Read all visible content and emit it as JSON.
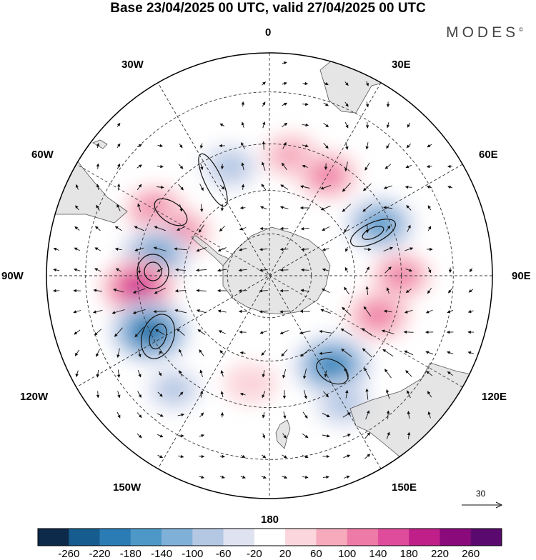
{
  "title": "Base 23/04/2025 00 UTC, valid 27/04/2025 00 UTC",
  "brand": "MODES",
  "brand_mark": "©",
  "projection": "south-polar-stereographic",
  "longitude_labels": {
    "n": "0",
    "ne30": "30E",
    "ne60": "60E",
    "e": "90E",
    "se120": "120E",
    "se150": "150E",
    "s": "180",
    "sw150": "150W",
    "sw120": "120W",
    "w": "90W",
    "nw60": "60W",
    "nw30": "30W"
  },
  "reference_vector": {
    "label": "30",
    "value": 30
  },
  "colorbar": {
    "ticks": [
      "-260",
      "-220",
      "-180",
      "-140",
      "-100",
      "-60",
      "-20",
      "20",
      "60",
      "100",
      "140",
      "180",
      "220",
      "260"
    ],
    "colors": [
      "#0d2a4a",
      "#165c8e",
      "#2b7cb5",
      "#4e98c8",
      "#7fb0d8",
      "#b4c8e4",
      "#dfe2f1",
      "#ffffff",
      "#fbd6dc",
      "#f6aabc",
      "#ee7aa8",
      "#e04c9c",
      "#c01f8a",
      "#8a0a7c",
      "#5a0a6e"
    ]
  },
  "anomaly_centers": [
    {
      "lon": -20,
      "lat": -50,
      "value": -90
    },
    {
      "lon": -60,
      "lat": -45,
      "value": 120
    },
    {
      "lon": -65,
      "lat": -55,
      "value": 140
    },
    {
      "lon": -80,
      "lat": -50,
      "value": -170
    },
    {
      "lon": -95,
      "lat": -45,
      "value": 200
    },
    {
      "lon": -115,
      "lat": -45,
      "value": -230
    },
    {
      "lon": -140,
      "lat": -40,
      "value": -70
    },
    {
      "lon": -170,
      "lat": -52,
      "value": 60
    },
    {
      "lon": 10,
      "lat": -48,
      "value": 90
    },
    {
      "lon": 30,
      "lat": -50,
      "value": 120
    },
    {
      "lon": 65,
      "lat": -48,
      "value": -170
    },
    {
      "lon": 90,
      "lat": -45,
      "value": 110
    },
    {
      "lon": 110,
      "lat": -50,
      "value": 130
    },
    {
      "lon": 145,
      "lat": -52,
      "value": -220
    },
    {
      "lon": 150,
      "lat": -40,
      "value": -90
    }
  ]
}
